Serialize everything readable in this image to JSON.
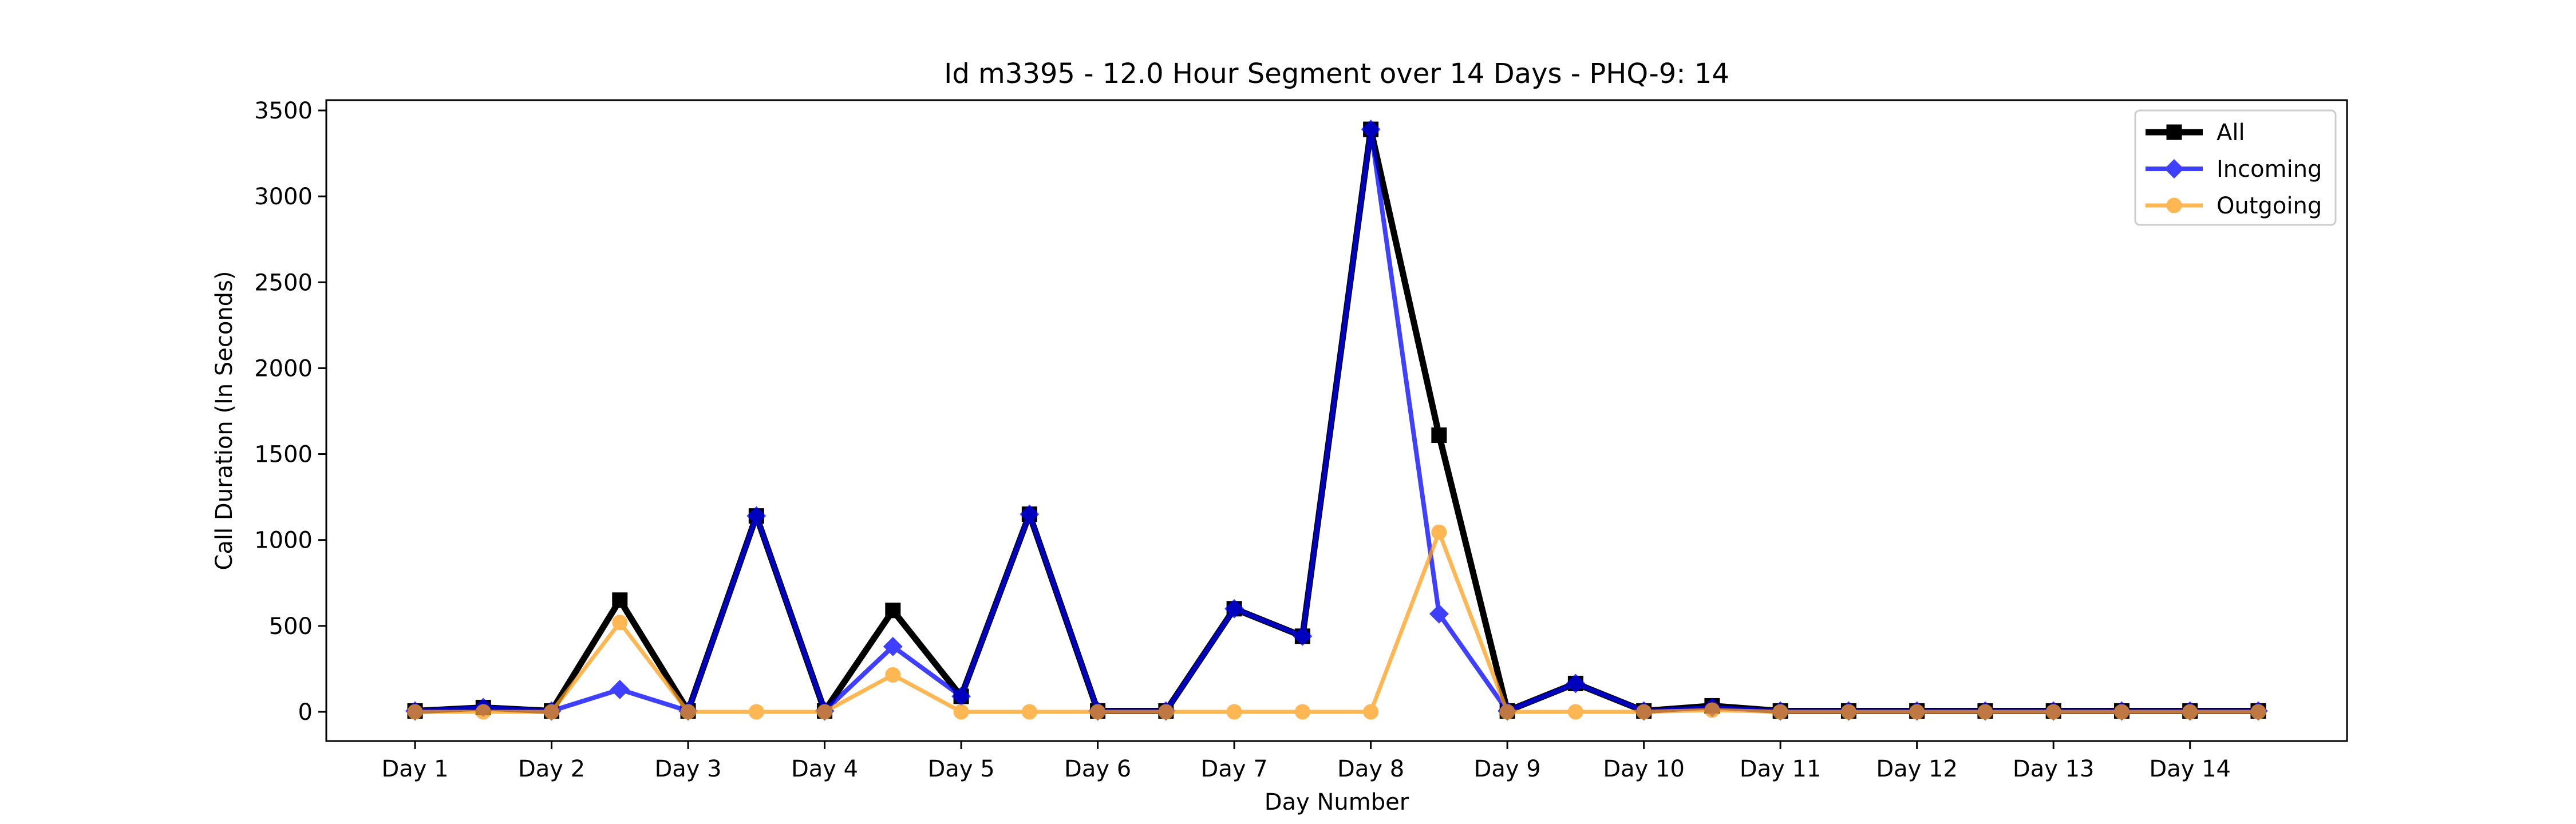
{
  "chart_data": {
    "type": "line",
    "title": "Id m3395 - 12.0 Hour Segment over 14 Days - PHQ-9: 14",
    "xlabel": "Day Number",
    "ylabel": "Call Duration (In Seconds)",
    "xlim": [
      0.35,
      15.15
    ],
    "ylim": [
      -170,
      3560
    ],
    "yticks": [
      0,
      500,
      1000,
      1500,
      2000,
      2500,
      3000,
      3500
    ],
    "xticks": [
      1,
      2,
      3,
      4,
      5,
      6,
      7,
      8,
      9,
      10,
      11,
      12,
      13,
      14
    ],
    "xtick_labels": [
      "Day 1",
      "Day 2",
      "Day 3",
      "Day 4",
      "Day 5",
      "Day 6",
      "Day 7",
      "Day 8",
      "Day 9",
      "Day 10",
      "Day 11",
      "Day 12",
      "Day 13",
      "Day 14"
    ],
    "x": [
      1,
      1.5,
      2,
      2.5,
      3,
      3.5,
      4,
      4.5,
      5,
      5.5,
      6,
      6.5,
      7,
      7.5,
      8,
      8.5,
      9,
      9.5,
      10,
      10.5,
      11,
      11.5,
      12,
      12.5,
      13,
      13.5,
      14,
      14.5
    ],
    "legend_position": "top-right",
    "grid": false,
    "series": [
      {
        "name": "All",
        "color": "#000000",
        "marker": "square",
        "values": [
          5,
          25,
          5,
          650,
          5,
          1140,
          5,
          590,
          90,
          1150,
          5,
          5,
          600,
          440,
          3390,
          1610,
          5,
          165,
          5,
          35,
          5,
          5,
          5,
          5,
          5,
          5,
          5,
          5
        ]
      },
      {
        "name": "Incoming",
        "color": "#0000ff",
        "marker": "diamond",
        "values": [
          5,
          25,
          5,
          130,
          5,
          1140,
          5,
          380,
          90,
          1150,
          5,
          5,
          600,
          440,
          3390,
          570,
          5,
          165,
          5,
          25,
          5,
          5,
          5,
          5,
          5,
          5,
          5,
          5
        ]
      },
      {
        "name": "Outgoing",
        "color": "#ff9f1c",
        "marker": "circle",
        "values": [
          0,
          0,
          0,
          520,
          0,
          0,
          0,
          215,
          0,
          0,
          0,
          0,
          0,
          0,
          0,
          1045,
          0,
          0,
          0,
          10,
          0,
          0,
          0,
          0,
          0,
          0,
          0,
          0
        ]
      }
    ]
  }
}
